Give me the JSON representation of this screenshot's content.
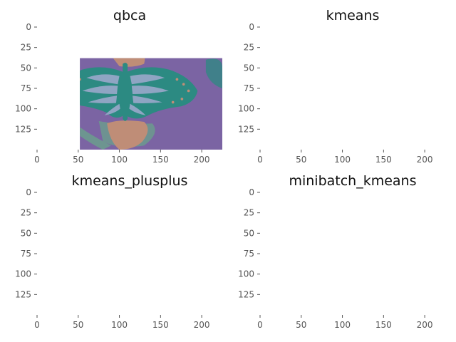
{
  "colors": {
    "purple": "#7b64a3",
    "blue": "#5966a0",
    "teal": "#2c8a82",
    "light_blue": "#8fa5c3",
    "salmon": "#bf8d77",
    "grey_green": "#6c9a8e",
    "tick": "#555555",
    "axis_edge": "#ffffff"
  },
  "chart_data": [
    {
      "type": "image",
      "title": "qbca",
      "xlim": [
        0,
        225
      ],
      "ylim": [
        150,
        0
      ],
      "xticks": [
        0,
        50,
        100,
        150,
        200
      ],
      "yticks": [
        0,
        25,
        50,
        75,
        100,
        125
      ],
      "grid": false,
      "palette": [
        "purple",
        "teal",
        "light_blue",
        "salmon",
        "grey_green"
      ]
    },
    {
      "type": "image",
      "title": "kmeans",
      "xlim": [
        0,
        225
      ],
      "ylim": [
        150,
        0
      ],
      "xticks": [
        0,
        50,
        100,
        150,
        200
      ],
      "yticks": [
        0,
        25,
        50,
        75,
        100,
        125
      ],
      "grid": false,
      "palette": [
        "purple",
        "blue",
        "teal",
        "light_blue",
        "salmon"
      ]
    },
    {
      "type": "image",
      "title": "kmeans_plusplus",
      "xlim": [
        0,
        225
      ],
      "ylim": [
        150,
        0
      ],
      "xticks": [
        0,
        50,
        100,
        150,
        200
      ],
      "yticks": [
        0,
        25,
        50,
        75,
        100,
        125
      ],
      "grid": false,
      "palette": [
        "purple",
        "blue",
        "teal",
        "light_blue",
        "salmon"
      ]
    },
    {
      "type": "image",
      "title": "minibatch_kmeans",
      "xlim": [
        0,
        225
      ],
      "ylim": [
        150,
        0
      ],
      "xticks": [
        0,
        50,
        100,
        150,
        200
      ],
      "yticks": [
        0,
        25,
        50,
        75,
        100,
        125
      ],
      "grid": false,
      "palette": [
        "purple",
        "blue",
        "teal",
        "light_blue",
        "salmon"
      ]
    }
  ]
}
